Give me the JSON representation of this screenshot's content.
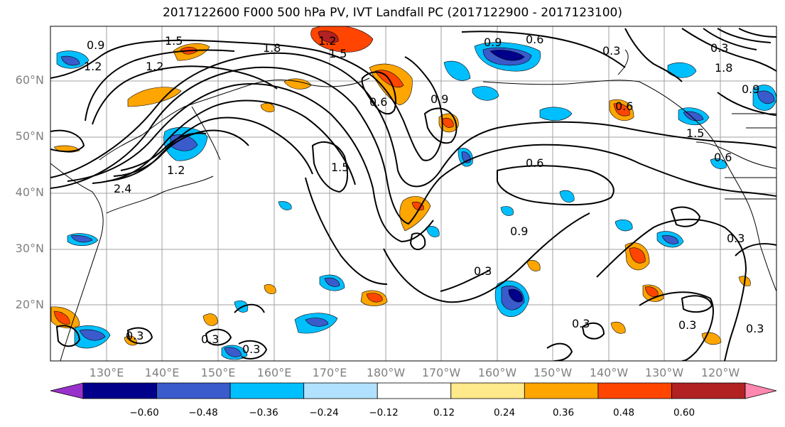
{
  "title": "2017122600 F000 500 hPa PV, IVT Landfall PC (2017122900 - 2017123100)",
  "lat_labels": [
    "60°N",
    "50°N",
    "40°N",
    "30°N",
    "20°N"
  ],
  "lon_labels": [
    "130°E",
    "140°E",
    "150°E",
    "160°E",
    "170°E",
    "180°W",
    "170°W",
    "160°W",
    "150°W",
    "140°W",
    "130°W",
    "120°W"
  ],
  "contour_labels": [
    "0.9",
    "1.2",
    "1.5",
    "1.2",
    "1.8",
    "1.5",
    "1.2",
    "0.9",
    "0.6",
    "0.3",
    "0.6",
    "0.9",
    "0.6",
    "0.3",
    "1.8",
    "1.5",
    "0.9",
    "1.2",
    "2.4",
    "1.5",
    "0.6",
    "0.9",
    "0.3",
    "0.3",
    "0.3",
    "0.3",
    "0.3",
    "0.3",
    "0.6",
    "0.3",
    "0.3"
  ],
  "colorbar": {
    "tick_labels": [
      "−0.60",
      "−0.48",
      "−0.36",
      "−0.24",
      "−0.12",
      "0.12",
      "0.24",
      "0.36",
      "0.48",
      "0.60"
    ],
    "bins": [
      "#9932cc",
      "#00008b",
      "#3a5bcc",
      "#00bfff",
      "#b0e2ff",
      "#ffffff",
      "#ffe98a",
      "#ffa500",
      "#ff4500",
      "#b22222",
      "#ff88b0"
    ]
  },
  "colors": {
    "grid": "#a0a0a0",
    "axis_label": "#808080",
    "contour": "#000000"
  }
}
